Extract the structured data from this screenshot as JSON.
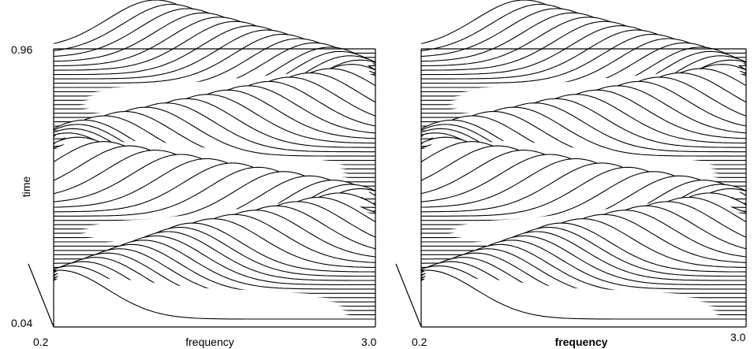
{
  "chart_data": [
    {
      "type": "line",
      "subtype": "waterfall",
      "title": "",
      "xlabel": "frequency",
      "ylabel": "time",
      "xlim": [
        0.2,
        3.0
      ],
      "ylim": [
        0.04,
        0.96
      ],
      "x_ticks": [
        "0.2",
        "3.0"
      ],
      "y_ticks": [
        "0.04",
        "0.96"
      ],
      "time_range": [
        0.04,
        0.96
      ],
      "ridges": [
        {
          "name": "",
          "points": [
            [
              0.04,
              0.25
            ],
            [
              0.2,
              1.4
            ],
            [
              0.32,
              2.9
            ]
          ]
        },
        {
          "name": "",
          "points": [
            [
              0.32,
              2.9
            ],
            [
              0.35,
              2.6
            ],
            [
              0.5,
              0.3
            ]
          ]
        },
        {
          "name": "",
          "points": [
            [
              0.5,
              0.3
            ],
            [
              0.55,
              0.45
            ],
            [
              0.75,
              2.9
            ]
          ]
        },
        {
          "name": "",
          "points": [
            [
              0.75,
              2.9
            ],
            [
              0.8,
              2.6
            ],
            [
              0.98,
              0.9
            ]
          ]
        }
      ]
    },
    {
      "type": "line",
      "subtype": "waterfall",
      "title": "",
      "xlabel": "frequency",
      "ylabel": "",
      "xlim": [
        0.2,
        3.0
      ],
      "ylim": [
        0.04,
        0.96
      ],
      "x_ticks": [
        "0.2",
        "3.0"
      ],
      "y_ticks": [],
      "time_range": [
        0.04,
        0.96
      ],
      "ridges": [
        {
          "name": "",
          "points": [
            [
              0.04,
              0.25
            ],
            [
              0.2,
              1.4
            ],
            [
              0.32,
              2.9
            ]
          ]
        },
        {
          "name": "",
          "points": [
            [
              0.32,
              2.9
            ],
            [
              0.35,
              2.6
            ],
            [
              0.5,
              0.3
            ]
          ]
        },
        {
          "name": "",
          "points": [
            [
              0.5,
              0.3
            ],
            [
              0.55,
              0.45
            ],
            [
              0.75,
              2.9
            ]
          ]
        },
        {
          "name": "",
          "points": [
            [
              0.75,
              2.9
            ],
            [
              0.8,
              2.6
            ],
            [
              0.98,
              0.9
            ]
          ]
        }
      ]
    }
  ]
}
